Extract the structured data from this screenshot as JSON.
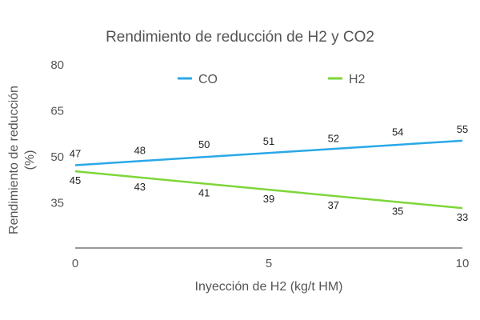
{
  "chart_data": {
    "type": "line",
    "title": "Rendimiento de reducción de H2 y CO2",
    "xlabel": "Inyección de H2 (kg/t HM)",
    "ylabel_line1": "Rendimiento de reducción",
    "ylabel_line2": "(%)",
    "xlim": [
      0,
      10
    ],
    "ylim": [
      20,
      80
    ],
    "x_ticks": [
      0,
      5,
      10
    ],
    "y_ticks": [
      35,
      50,
      65,
      80
    ],
    "grid": false,
    "legend_position": "top",
    "x": [
      0,
      1.67,
      3.33,
      5,
      6.67,
      8.33,
      10
    ],
    "series": [
      {
        "name": "CO",
        "color": "#2aa8e8",
        "values": [
          47,
          48,
          50,
          51,
          52,
          54,
          55
        ]
      },
      {
        "name": "H2",
        "color": "#7ed63a",
        "values": [
          45,
          43,
          41,
          39,
          37,
          35,
          33
        ]
      }
    ]
  }
}
